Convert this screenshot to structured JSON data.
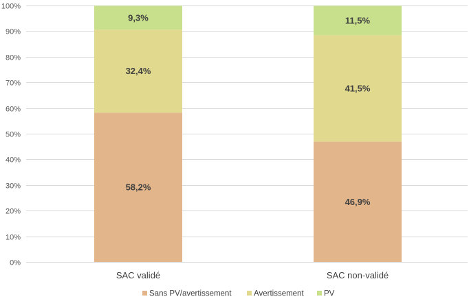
{
  "chart_data": {
    "type": "bar",
    "stacked": true,
    "percent": true,
    "title": "",
    "xlabel": "",
    "ylabel": "",
    "categories": [
      "SAC validé",
      "SAC non-validé"
    ],
    "series": [
      {
        "name": "Sans PV/avertissement",
        "values": [
          58.2,
          46.9
        ],
        "labels": [
          "58,2%",
          "46,9%"
        ],
        "color": "#e2b58a"
      },
      {
        "name": "Avertissement",
        "values": [
          32.4,
          41.5
        ],
        "labels": [
          "32,4%",
          "41,5%"
        ],
        "color": "#e0d98e"
      },
      {
        "name": "PV",
        "values": [
          9.3,
          11.5
        ],
        "labels": [
          "9,3%",
          "11,5%"
        ],
        "color": "#c8df8c"
      }
    ],
    "ylim": [
      0,
      100
    ],
    "yticks": [
      0,
      10,
      20,
      30,
      40,
      50,
      60,
      70,
      80,
      90,
      100
    ],
    "ytick_labels": [
      "0%",
      "10%",
      "20%",
      "30%",
      "40%",
      "50%",
      "60%",
      "70%",
      "80%",
      "90%",
      "100%"
    ],
    "grid": true,
    "legend_position": "bottom"
  }
}
